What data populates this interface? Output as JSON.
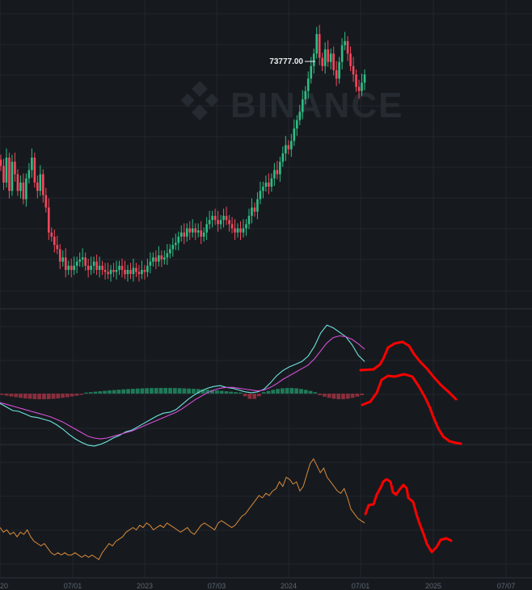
{
  "watermark": "BINANCE",
  "colors": {
    "background": "#161a1e",
    "grid": "#23272d",
    "up": "#2ebd85",
    "down": "#f6465d",
    "macd_dif": "#6fe4e0",
    "macd_dea": "#d64fd8",
    "osc_line": "#d8893a",
    "drawing": "#ff0000"
  },
  "chart_data": [
    {
      "type": "candlestick",
      "panel": "price",
      "annotation": {
        "label": "73777.00",
        "kind": "highest-high"
      },
      "x_tick_labels": [
        "20",
        "07/01",
        "2023",
        "07/03",
        "2024",
        "07/01",
        "2025",
        "07/07"
      ],
      "closes": [
        42,
        38,
        44,
        36,
        43,
        40,
        36,
        38,
        34,
        39,
        41,
        44,
        38,
        36,
        40,
        35,
        32,
        26,
        25,
        23,
        22,
        19,
        20,
        17,
        18,
        17,
        18,
        19,
        19.5,
        20,
        18,
        17,
        18,
        19,
        17,
        18,
        17,
        16.5,
        16,
        17,
        16.5,
        17,
        18,
        17,
        16,
        17,
        16,
        17.5,
        16.5,
        16,
        17,
        16.5,
        18,
        19,
        20,
        19,
        20.5,
        19.5,
        20,
        21,
        22,
        23,
        23.5,
        25,
        26,
        25,
        27,
        26,
        27,
        26,
        26.5,
        25,
        26,
        28,
        29,
        30,
        29,
        28,
        29,
        30,
        29,
        28,
        27,
        26,
        27,
        26,
        27,
        28,
        30,
        32,
        31,
        34,
        36,
        37,
        38,
        37,
        39,
        41,
        40,
        43,
        45,
        47,
        46,
        48,
        51,
        53,
        55,
        58,
        60,
        63,
        66,
        69,
        73.7,
        68,
        66,
        70,
        67,
        69,
        65,
        63,
        67,
        71,
        72,
        69,
        66,
        64,
        61,
        60,
        62,
        64
      ]
    },
    {
      "type": "line",
      "panel": "macd",
      "series": [
        {
          "role": "dif",
          "values": [
            -1.1,
            -1.5,
            -1.9,
            -2.0,
            -2.3,
            -2.6,
            -2.7,
            -2.9,
            -3.1,
            -3.5,
            -4.0,
            -4.6,
            -5.1,
            -5.5,
            -5.8,
            -5.9,
            -5.7,
            -5.4,
            -5.0,
            -4.7,
            -4.3,
            -4.1,
            -3.7,
            -3.3,
            -2.9,
            -2.5,
            -2.2,
            -2.1,
            -1.8,
            -1.2,
            -0.6,
            -0.1,
            0.3,
            0.6,
            0.8,
            0.9,
            0.7,
            0.6,
            0.4,
            0.2,
            0.1,
            0.2,
            0.5,
            1.2,
            2.0,
            2.6,
            3.0,
            3.3,
            3.6,
            4.2,
            5.3,
            6.8,
            7.7,
            7.4,
            6.9,
            6.4,
            5.5,
            4.3,
            3.6
          ]
        },
        {
          "role": "dea",
          "values": [
            -1.0,
            -1.2,
            -1.4,
            -1.6,
            -1.8,
            -2.0,
            -2.2,
            -2.4,
            -2.6,
            -2.9,
            -3.2,
            -3.6,
            -4.0,
            -4.4,
            -4.8,
            -5.0,
            -5.1,
            -5.0,
            -4.8,
            -4.6,
            -4.4,
            -4.2,
            -3.9,
            -3.6,
            -3.3,
            -3.0,
            -2.7,
            -2.4,
            -2.1,
            -1.7,
            -1.2,
            -0.7,
            -0.3,
            0.1,
            0.4,
            0.6,
            0.7,
            0.7,
            0.6,
            0.5,
            0.4,
            0.3,
            0.4,
            0.7,
            1.1,
            1.6,
            2.0,
            2.4,
            2.8,
            3.2,
            3.9,
            4.8,
            5.7,
            6.3,
            6.5,
            6.4,
            6.1,
            5.6,
            5.0
          ]
        }
      ],
      "histogram_sign_runs": [
        {
          "sign": "negative",
          "count": 18
        },
        {
          "sign": "positive",
          "count": 34
        },
        {
          "sign": "negative",
          "count": 4
        },
        {
          "sign": "positive",
          "count": 12
        },
        {
          "sign": "negative",
          "count": 10
        }
      ]
    },
    {
      "type": "line",
      "panel": "oscillator",
      "series": [
        {
          "role": "line",
          "values": [
            42,
            40,
            41,
            39,
            40,
            38,
            40,
            39,
            41,
            38,
            36,
            35,
            34,
            35,
            33,
            31,
            30,
            31,
            30,
            31,
            30,
            30,
            31,
            30,
            29,
            30,
            29,
            30,
            29,
            28,
            31,
            33,
            35,
            34,
            36,
            37,
            38,
            40,
            41,
            42,
            41,
            43,
            42,
            44,
            43,
            41,
            42,
            43,
            42,
            44,
            43,
            42,
            41,
            40,
            41,
            42,
            40,
            39,
            41,
            43,
            44,
            43,
            42,
            41,
            44,
            45,
            44,
            43,
            42,
            43,
            45,
            47,
            48,
            50,
            52,
            54,
            56,
            55,
            57,
            56,
            58,
            59,
            62,
            60,
            64,
            63,
            61,
            62,
            58,
            60,
            65,
            70,
            72,
            69,
            66,
            68,
            64,
            62,
            60,
            58,
            57,
            59,
            55,
            50,
            48,
            46,
            45,
            44
          ]
        }
      ]
    },
    {
      "type": "drawing",
      "panel": "overlay",
      "strokes": [
        {
          "role": "freehand-1",
          "points": [
            [
              446,
              458
            ],
            [
              462,
              457
            ],
            [
              470,
              451
            ],
            [
              474,
              444
            ],
            [
              480,
              430
            ],
            [
              488,
              425
            ],
            [
              498,
              423
            ],
            [
              506,
              428
            ],
            [
              512,
              438
            ],
            [
              520,
              448
            ],
            [
              528,
              456
            ],
            [
              536,
              466
            ],
            [
              545,
              476
            ],
            [
              556,
              486
            ],
            [
              564,
              494
            ]
          ]
        },
        {
          "role": "freehand-2",
          "points": [
            [
              448,
              501
            ],
            [
              458,
              497
            ],
            [
              466,
              486
            ],
            [
              472,
              470
            ],
            [
              480,
              465
            ],
            [
              488,
              466
            ],
            [
              500,
              463
            ],
            [
              510,
              466
            ],
            [
              518,
              478
            ],
            [
              526,
              492
            ],
            [
              532,
              505
            ],
            [
              536,
              516
            ],
            [
              542,
              530
            ],
            [
              548,
              540
            ],
            [
              556,
              546
            ],
            [
              564,
              548
            ],
            [
              570,
              549
            ]
          ]
        },
        {
          "role": "freehand-3",
          "points": [
            [
              452,
              636
            ],
            [
              456,
              625
            ],
            [
              462,
              624
            ],
            [
              466,
              612
            ],
            [
              471,
              603
            ],
            [
              474,
              596
            ],
            [
              478,
              593
            ],
            [
              483,
              596
            ],
            [
              486,
              609
            ],
            [
              490,
              612
            ],
            [
              494,
              606
            ],
            [
              499,
              600
            ],
            [
              503,
              604
            ],
            [
              505,
              616
            ],
            [
              511,
              621
            ],
            [
              515,
              636
            ],
            [
              519,
              648
            ],
            [
              524,
              661
            ],
            [
              528,
              673
            ],
            [
              534,
              683
            ],
            [
              540,
              677
            ],
            [
              545,
              668
            ],
            [
              552,
              666
            ],
            [
              558,
              669
            ]
          ]
        }
      ]
    }
  ]
}
